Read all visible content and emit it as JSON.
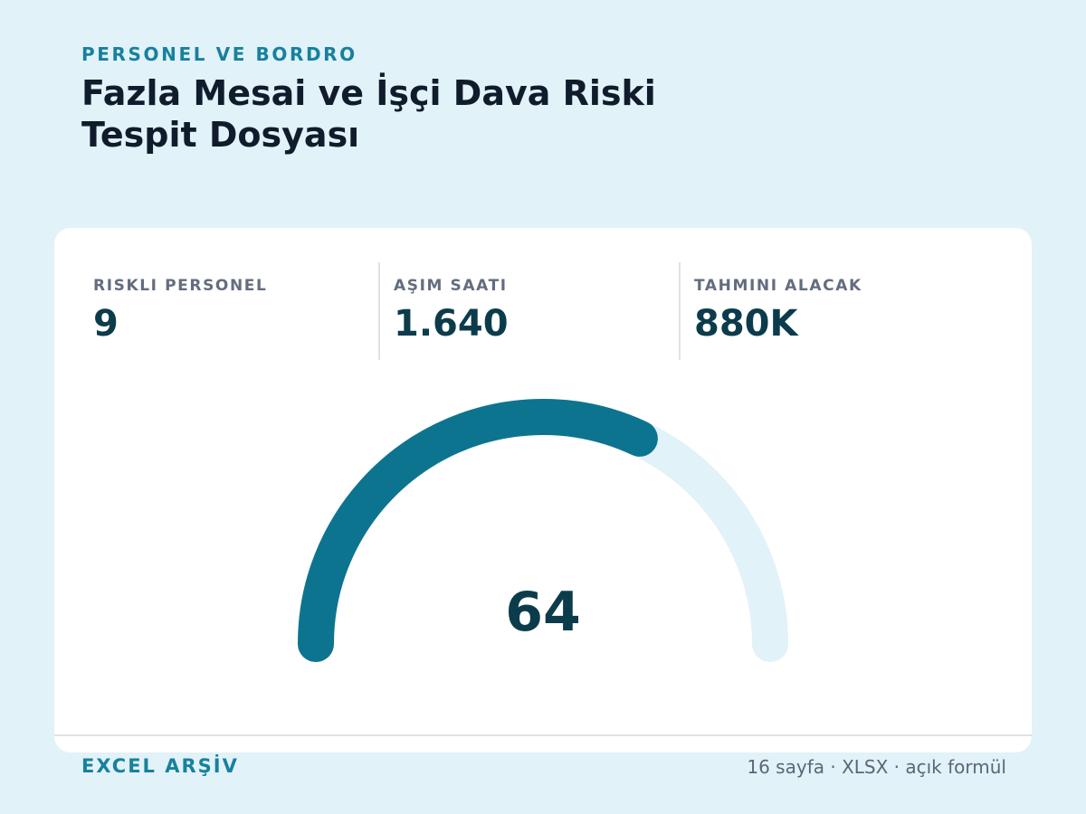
{
  "header": {
    "eyebrow": "PERSONEL VE BORDRO",
    "title": "Fazla Mesai ve İşçi Dava Riski Tespit Dosyası"
  },
  "stats": [
    {
      "label": "RISKLI PERSONEL",
      "value": "9"
    },
    {
      "label": "AŞIM SAATI",
      "value": "1.640"
    },
    {
      "label": "TAHMINI ALACAK",
      "value": "880K"
    }
  ],
  "gauge": {
    "value": "64",
    "fraction": 0.64,
    "colors": {
      "fill": "#0d7490",
      "track": "#e1f2f8"
    }
  },
  "footer": {
    "left": "EXCEL ARŞİV",
    "right": "16 sayfa · XLSX · açık formül"
  }
}
